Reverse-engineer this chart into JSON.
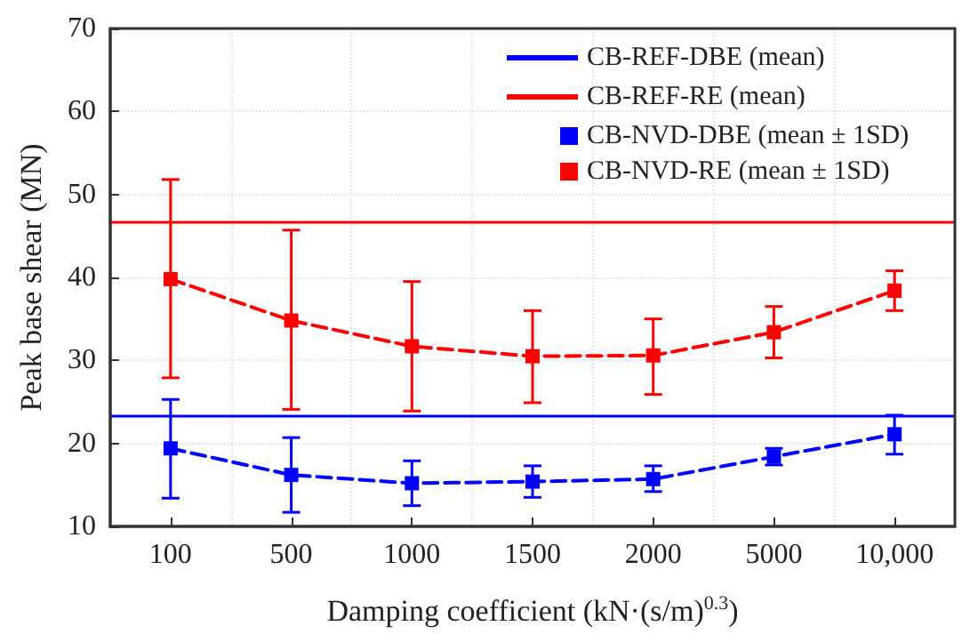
{
  "chart_data": {
    "type": "line",
    "xlabel": "Damping coefficient (kN·(s/m)$^{0.3}$)",
    "ylabel": "Peak base shear (MN)",
    "categories": [
      "100",
      "500",
      "1000",
      "1500",
      "2000",
      "5000",
      "10,000"
    ],
    "series": [
      {
        "name": "CB-NVD-DBE (mean ± 1SD)",
        "color": "#0000ff",
        "values": [
          19.4,
          16.2,
          15.2,
          15.4,
          15.7,
          18.4,
          21.1
        ],
        "errors": [
          [
            13.4,
            25.3
          ],
          [
            11.7,
            20.7
          ],
          [
            12.5,
            17.9
          ],
          [
            13.5,
            17.3
          ],
          [
            14.2,
            17.3
          ],
          [
            17.4,
            19.4
          ],
          [
            18.7,
            23.4
          ]
        ]
      },
      {
        "name": "CB-NVD-RE (mean ± 1SD)",
        "color": "#ff0000",
        "values": [
          39.8,
          34.8,
          31.7,
          30.5,
          30.6,
          33.4,
          38.4
        ],
        "errors": [
          [
            27.9,
            51.8
          ],
          [
            24.1,
            45.7
          ],
          [
            23.9,
            39.5
          ],
          [
            24.9,
            36.0
          ],
          [
            25.9,
            35.0
          ],
          [
            30.3,
            36.5
          ],
          [
            36.0,
            40.8
          ]
        ]
      }
    ],
    "ref_lines": [
      {
        "axis": "y",
        "value": 23.4,
        "label": "CB-REF-DBE (mean)",
        "color": "#0000ff",
        "line_style": "solid"
      },
      {
        "axis": "y",
        "value": 46.8,
        "label": "CB-REF-RE (mean)",
        "color": "#ff0000",
        "line_style": "solid"
      }
    ],
    "ylim": [
      10,
      70
    ],
    "yticks": [
      10,
      20,
      30,
      40,
      50,
      60,
      70
    ],
    "grid": true,
    "legend": "top right",
    "marker": "square",
    "line_style": "dashed"
  }
}
